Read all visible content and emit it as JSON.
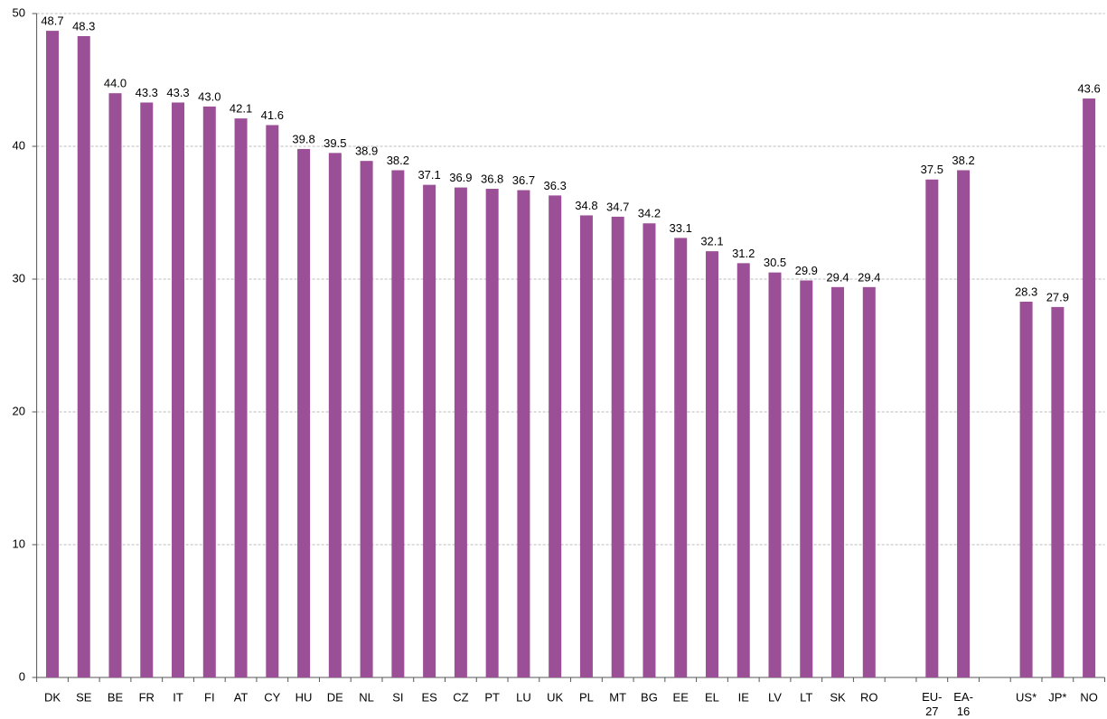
{
  "chart_data": {
    "type": "bar",
    "categories": [
      "DK",
      "SE",
      "BE",
      "FR",
      "IT",
      "FI",
      "AT",
      "CY",
      "HU",
      "DE",
      "NL",
      "SI",
      "ES",
      "CZ",
      "PT",
      "LU",
      "UK",
      "PL",
      "MT",
      "BG",
      "EE",
      "EL",
      "IE",
      "LV",
      "LT",
      "SK",
      "RO",
      null,
      "EU-27",
      "EA-16",
      null,
      "US*",
      "JP*",
      "NO"
    ],
    "values": [
      48.7,
      48.3,
      44.0,
      43.3,
      43.3,
      43.0,
      42.1,
      41.6,
      39.8,
      39.5,
      38.9,
      38.2,
      37.1,
      36.9,
      36.8,
      36.7,
      36.3,
      34.8,
      34.7,
      34.2,
      33.1,
      32.1,
      31.2,
      30.5,
      29.9,
      29.4,
      29.4,
      null,
      37.5,
      38.2,
      null,
      28.3,
      27.9,
      43.6
    ],
    "value_labels": [
      "48.7",
      "48.3",
      "44.0",
      "43.3",
      "43.3",
      "43.0",
      "42.1",
      "41.6",
      "39.8",
      "39.5",
      "38.9",
      "38.2",
      "37.1",
      "36.9",
      "36.8",
      "36.7",
      "36.3",
      "34.8",
      "34.7",
      "34.2",
      "33.1",
      "32.1",
      "31.2",
      "30.5",
      "29.9",
      "29.4",
      "29.4",
      null,
      "37.5",
      "38.2",
      null,
      "28.3",
      "27.9",
      "43.6"
    ],
    "color": "#9b4f96",
    "ylim": [
      0,
      50
    ],
    "yticks": [
      0,
      10,
      20,
      30,
      40,
      50
    ],
    "grid": true
  }
}
